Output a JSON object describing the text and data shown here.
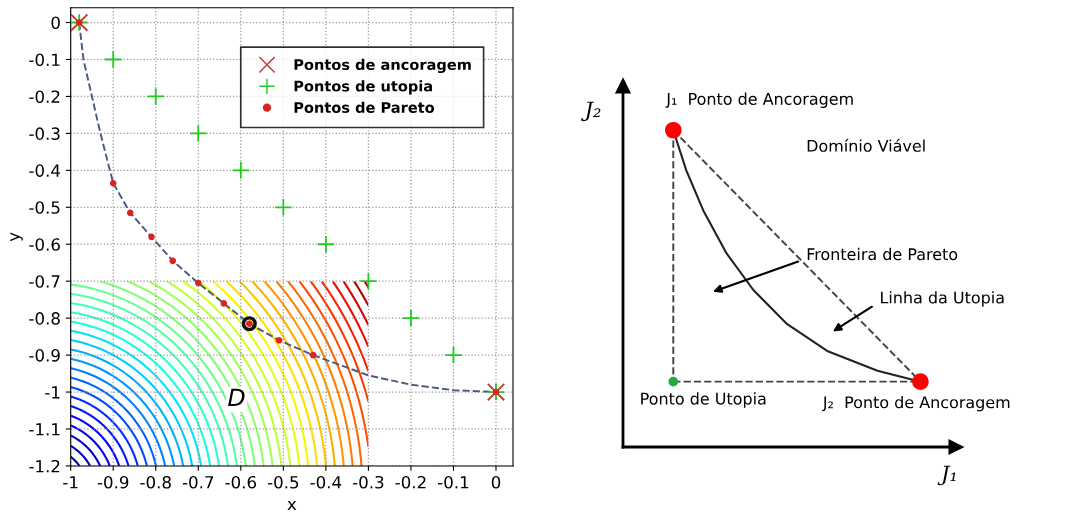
{
  "chart_data": [
    {
      "type": "scatter",
      "xlabel": "x",
      "ylabel": "y",
      "xlim": [
        -1,
        0.04
      ],
      "ylim": [
        -1.2,
        0.04
      ],
      "xticks": [
        -1,
        -0.9,
        -0.8,
        -0.7,
        -0.6,
        -0.5,
        -0.4,
        -0.3,
        -0.2,
        -0.1,
        0
      ],
      "yticks": [
        0,
        -0.1,
        -0.2,
        -0.3,
        -0.4,
        -0.5,
        -0.6,
        -0.7,
        -0.8,
        -0.9,
        -1,
        -1.1,
        -1.2
      ],
      "grid": true,
      "legend": "top right",
      "annotations": [
        "D"
      ],
      "series": [
        {
          "type": "line",
          "color": "#4a5a80",
          "line_style": "dashed",
          "marker": "none",
          "x": [
            -0.98,
            -0.97,
            -0.95,
            -0.93,
            -0.9,
            -0.86,
            -0.81,
            -0.76,
            -0.7,
            -0.64,
            -0.58,
            -0.51,
            -0.43,
            -0.3,
            -0.2,
            -0.1,
            0
          ],
          "values": [
            0,
            -0.1,
            -0.2,
            -0.3,
            -0.435,
            -0.515,
            -0.58,
            -0.645,
            -0.705,
            -0.76,
            -0.815,
            -0.86,
            -0.9,
            -0.955,
            -0.98,
            -0.995,
            -1
          ]
        },
        {
          "name": "Pontos de ancoragem",
          "color": "#c0392b",
          "marker": "x",
          "x": [
            -0.98,
            0
          ],
          "values": [
            0,
            -1
          ]
        },
        {
          "name": "Pontos de utopia",
          "color": "#22cc22",
          "marker": "cross",
          "x": [
            -0.98,
            -0.9,
            -0.8,
            -0.7,
            -0.6,
            -0.5,
            -0.4,
            -0.3,
            -0.2,
            -0.1,
            0
          ],
          "values": [
            0,
            -0.1,
            -0.2,
            -0.3,
            -0.4,
            -0.5,
            -0.6,
            -0.7,
            -0.8,
            -0.9,
            -1
          ]
        },
        {
          "color": "#111111",
          "marker": "circle",
          "x": [
            -0.58
          ],
          "values": [
            -0.815
          ]
        },
        {
          "name": "Pontos de Pareto",
          "color": "#dd2222",
          "marker": "circle",
          "x": [
            -0.98,
            -0.9,
            -0.86,
            -0.81,
            -0.76,
            -0.7,
            -0.64,
            -0.58,
            -0.51,
            -0.43,
            0
          ],
          "values": [
            0,
            -0.435,
            -0.515,
            -0.58,
            -0.645,
            -0.705,
            -0.76,
            -0.815,
            -0.86,
            -0.9,
            -1
          ]
        }
      ]
    },
    {
      "type": "other",
      "xlabel": "J₁",
      "ylabel": "J₂",
      "annotations": [
        "J₁  Ponto de Ancoragem",
        "J₂  Ponto de Ancoragem",
        "Ponto de Utopia",
        "Domínio Viável",
        "Fronteira de Pareto",
        "Linha da Utopia"
      ]
    }
  ]
}
